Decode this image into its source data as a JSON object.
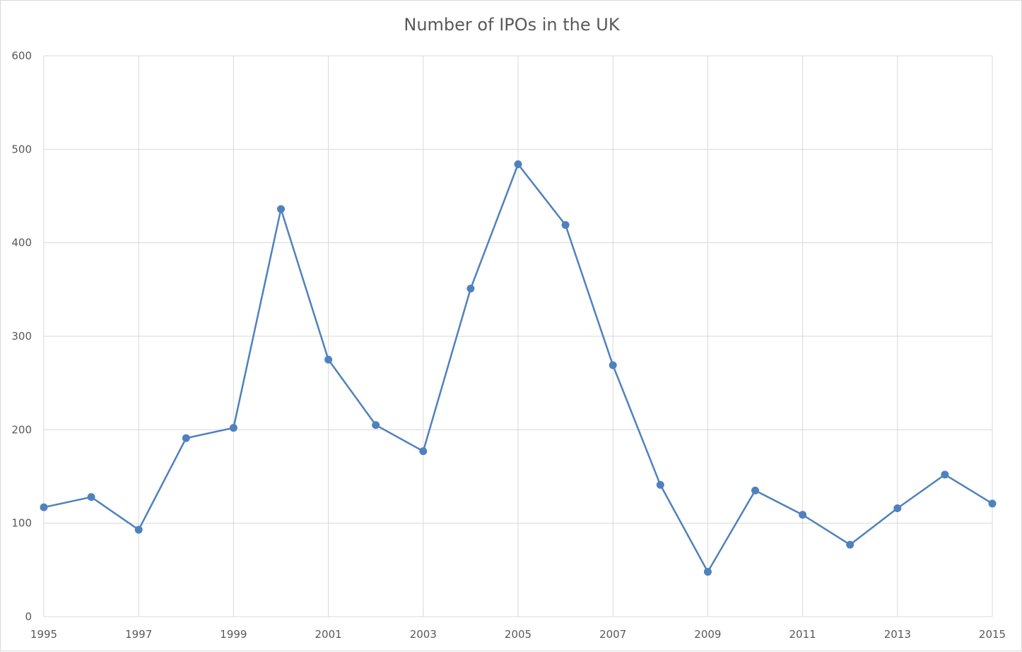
{
  "chart_data": {
    "type": "line",
    "title": "Number of IPOs in the UK",
    "xlabel": "",
    "ylabel": "",
    "x": [
      1995,
      1996,
      1997,
      1998,
      1999,
      2000,
      2001,
      2002,
      2003,
      2004,
      2005,
      2006,
      2007,
      2008,
      2009,
      2010,
      2011,
      2012,
      2013,
      2014,
      2015
    ],
    "series": [
      {
        "name": "",
        "values": [
          117,
          128,
          93,
          191,
          202,
          436,
          275,
          205,
          177,
          351,
          484,
          419,
          269,
          141,
          48,
          135,
          109,
          77,
          116,
          152,
          121
        ],
        "color": "#4f81bd"
      }
    ],
    "xlim": [
      1995,
      2015
    ],
    "ylim": [
      0,
      600
    ],
    "x_ticks": [
      "1995",
      "1997",
      "1999",
      "2001",
      "2003",
      "2005",
      "2007",
      "2009",
      "2011",
      "2013",
      "2015"
    ],
    "y_ticks": [
      "0",
      "100",
      "200",
      "300",
      "400",
      "500",
      "600"
    ],
    "grid": true,
    "legend": "none",
    "colors": {
      "grid": "#d9d9d9",
      "line": "#4f81bd",
      "text": "#595959"
    }
  }
}
